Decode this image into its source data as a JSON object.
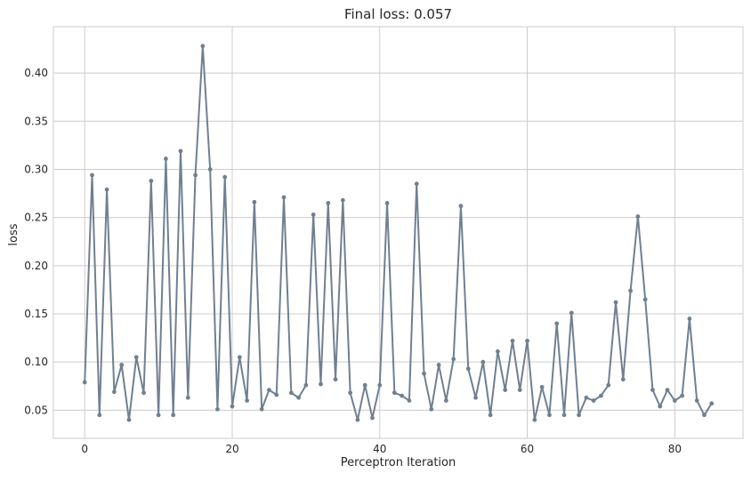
{
  "chart_data": {
    "type": "line",
    "title": "Final loss: 0.057",
    "xlabel": "Perceptron Iteration",
    "ylabel": "loss",
    "xlim": [
      -4.25,
      89.25
    ],
    "ylim": [
      0.0208,
      0.4481
    ],
    "xticks": [
      0,
      20,
      40,
      60,
      80
    ],
    "yticks": [
      0.05,
      0.1,
      0.15,
      0.2,
      0.25,
      0.3,
      0.35,
      0.4
    ],
    "ytick_labels": [
      "0.05",
      "0.10",
      "0.15",
      "0.20",
      "0.25",
      "0.30",
      "0.35",
      "0.40"
    ],
    "grid": true,
    "line_color": "#708090",
    "series": [
      {
        "x": [
          0,
          1,
          2,
          3,
          4,
          5,
          6,
          7,
          8,
          9,
          10,
          11,
          12,
          13,
          14,
          15,
          16,
          17,
          18,
          19,
          20,
          21,
          22,
          23,
          24,
          25,
          26,
          27,
          28,
          29,
          30,
          31,
          32,
          33,
          34,
          35,
          36,
          37,
          38,
          39,
          40,
          41,
          42,
          43,
          44,
          45,
          46,
          47,
          48,
          49,
          50,
          51,
          52,
          53,
          54,
          55,
          56,
          57,
          58,
          59,
          60,
          61,
          62,
          63,
          64,
          65,
          66,
          67,
          68,
          69,
          70,
          71,
          72,
          73,
          74,
          75,
          76,
          77,
          78,
          79,
          80,
          81,
          82,
          83,
          84,
          85
        ],
        "values": [
          0.079,
          0.294,
          0.045,
          0.279,
          0.069,
          0.097,
          0.04,
          0.105,
          0.068,
          0.288,
          0.045,
          0.311,
          0.045,
          0.319,
          0.063,
          0.294,
          0.428,
          0.3,
          0.051,
          0.292,
          0.054,
          0.105,
          0.06,
          0.266,
          0.051,
          0.071,
          0.066,
          0.271,
          0.068,
          0.063,
          0.076,
          0.253,
          0.077,
          0.265,
          0.082,
          0.268,
          0.068,
          0.04,
          0.076,
          0.042,
          0.076,
          0.265,
          0.068,
          0.065,
          0.06,
          0.285,
          0.088,
          0.051,
          0.097,
          0.06,
          0.103,
          0.262,
          0.093,
          0.063,
          0.1,
          0.045,
          0.111,
          0.071,
          0.122,
          0.071,
          0.122,
          0.04,
          0.074,
          0.045,
          0.14,
          0.045,
          0.151,
          0.045,
          0.063,
          0.06,
          0.065,
          0.076,
          0.162,
          0.082,
          0.174,
          0.251,
          0.165,
          0.071,
          0.054,
          0.071,
          0.06,
          0.065,
          0.145,
          0.06,
          0.045,
          0.057
        ]
      }
    ]
  }
}
